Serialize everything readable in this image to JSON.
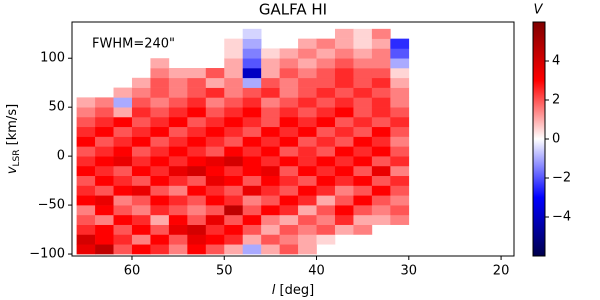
{
  "chart_data": {
    "type": "heatmap",
    "title": "GALFA HI",
    "annotation": "FWHM=240\"",
    "xlabel_var": "l",
    "xlabel_unit": "[deg]",
    "ylabel_var": "v",
    "ylabel_sub": "LSR",
    "ylabel_unit": "[km/s]",
    "colorbar_label": "V",
    "x": [
      65,
      63,
      61,
      59,
      57,
      55,
      53,
      51,
      49,
      47,
      45,
      43,
      41,
      39,
      37,
      35,
      33,
      31
    ],
    "y": [
      -95,
      -85,
      -75,
      -65,
      -55,
      -45,
      -35,
      -25,
      -15,
      -5,
      5,
      15,
      25,
      35,
      45,
      55,
      65,
      75,
      85,
      95,
      105,
      115,
      125
    ],
    "values": [
      [
        3.5,
        4.5,
        2,
        3,
        2.5,
        1.5,
        3,
        2,
        1,
        -1,
        1,
        2,
        1,
        null,
        null,
        null,
        null,
        null
      ],
      [
        4,
        3,
        2.5,
        1.5,
        3,
        2,
        3.5,
        3,
        2.5,
        1,
        2,
        1.5,
        1,
        0.5,
        null,
        null,
        null,
        null
      ],
      [
        2.5,
        3,
        2,
        3,
        2,
        3.5,
        4,
        2.5,
        3,
        2,
        1,
        2,
        1.5,
        2,
        1,
        1.5,
        null,
        null
      ],
      [
        2,
        1.5,
        3,
        2.5,
        1,
        3,
        2,
        3.5,
        2,
        3,
        1.5,
        1,
        2,
        1.5,
        2.5,
        1,
        1,
        1.5
      ],
      [
        1.5,
        3,
        2,
        1.5,
        2.5,
        2,
        1.5,
        2,
        4.5,
        2,
        3,
        2.5,
        1,
        2,
        3,
        2,
        1.5,
        2
      ],
      [
        3,
        3.5,
        1.5,
        2,
        3,
        2.5,
        2,
        3,
        2.5,
        1.5,
        2,
        3,
        2.5,
        1,
        2,
        3,
        2,
        1.5
      ],
      [
        2.5,
        2,
        3,
        3.5,
        2,
        1.5,
        3,
        2.5,
        2,
        3.5,
        2.5,
        2,
        3,
        2.5,
        1.5,
        2,
        3,
        2
      ],
      [
        2,
        3,
        2.5,
        2,
        3,
        2.5,
        2,
        3.5,
        3,
        2,
        3,
        2.5,
        2,
        3,
        2.5,
        3,
        2,
        2.5
      ],
      [
        3,
        2.5,
        2,
        3,
        2.5,
        3.5,
        4,
        3,
        2.5,
        3,
        3.5,
        2,
        3,
        2.5,
        3,
        2,
        3.5,
        1.5
      ],
      [
        2.5,
        3,
        3.5,
        2.5,
        3,
        2.5,
        3,
        3.5,
        4,
        3,
        2.5,
        3,
        2.5,
        3,
        2.5,
        3,
        2,
        2.5
      ],
      [
        2,
        2.5,
        3,
        2,
        2.5,
        3,
        2.5,
        2,
        3,
        2.5,
        3,
        2,
        2.5,
        2,
        3,
        2.5,
        3,
        2
      ],
      [
        3,
        2,
        2.5,
        3,
        2,
        2.5,
        3,
        2.5,
        2,
        3,
        2.5,
        3,
        2,
        2.5,
        2,
        3,
        2.5,
        1.5
      ],
      [
        2.5,
        3,
        2,
        2.5,
        3,
        2,
        2.5,
        3,
        2.5,
        2,
        3,
        2.5,
        3,
        2,
        2.5,
        2,
        3,
        2
      ],
      [
        2,
        2.5,
        3,
        2,
        2.5,
        3,
        2,
        2.5,
        3,
        2.5,
        2,
        3,
        2.5,
        3,
        2,
        2.5,
        2,
        2.5
      ],
      [
        1.5,
        2,
        1,
        2.5,
        2,
        2.5,
        3,
        2,
        2.5,
        3,
        2,
        2.5,
        2,
        2.5,
        3,
        2,
        2.5,
        2
      ],
      [
        1,
        1.5,
        -1,
        2,
        1.5,
        2,
        2.5,
        1.5,
        2,
        2.5,
        1.5,
        2,
        2.5,
        2,
        2.5,
        2,
        2.5,
        1.5
      ],
      [
        null,
        null,
        1,
        1.5,
        2,
        1.5,
        2,
        2.5,
        1.5,
        2,
        2.5,
        1.5,
        2,
        2.5,
        2,
        2.5,
        2,
        1.5
      ],
      [
        null,
        null,
        null,
        1,
        2,
        1.5,
        2,
        1,
        1.5,
        -1,
        2,
        1.5,
        2,
        2,
        2.5,
        2,
        2.5,
        1
      ],
      [
        null,
        null,
        null,
        null,
        1.5,
        1,
        1,
        2,
        1,
        -4,
        1,
        2,
        1.5,
        2,
        2.5,
        2,
        2,
        0.5
      ],
      [
        null,
        null,
        null,
        null,
        1,
        null,
        null,
        null,
        1,
        -2,
        1,
        1.5,
        1,
        1.5,
        2,
        1.5,
        1.5,
        -1
      ],
      [
        null,
        null,
        null,
        null,
        null,
        null,
        null,
        null,
        0.5,
        -1.5,
        0.5,
        1,
        1.5,
        1,
        1.5,
        1,
        1.5,
        -2
      ],
      [
        null,
        null,
        null,
        null,
        null,
        null,
        null,
        null,
        0.5,
        -1,
        null,
        null,
        1,
        1.5,
        1,
        0.5,
        1,
        -2.5
      ],
      [
        null,
        null,
        null,
        null,
        null,
        null,
        null,
        null,
        null,
        -0.5,
        null,
        null,
        null,
        null,
        1,
        0.5,
        1.5,
        null
      ]
    ],
    "xlim": [
      66.5,
      18.6
    ],
    "ylim": [
      -102,
      137
    ],
    "xticks": [
      60,
      50,
      40,
      30,
      20
    ],
    "yticks": [
      {
        "value": -100,
        "label": "−100"
      },
      {
        "value": -50,
        "label": "−50"
      },
      0,
      50,
      100
    ],
    "clim": [
      -6,
      6
    ],
    "cticks": [
      {
        "value": -4,
        "label": "−4"
      },
      {
        "value": -2,
        "label": "−2"
      },
      0,
      2,
      4
    ],
    "colormap": [
      "#00004c",
      "#0000ff",
      "#ffffff",
      "#ff0000",
      "#7f0000"
    ]
  }
}
